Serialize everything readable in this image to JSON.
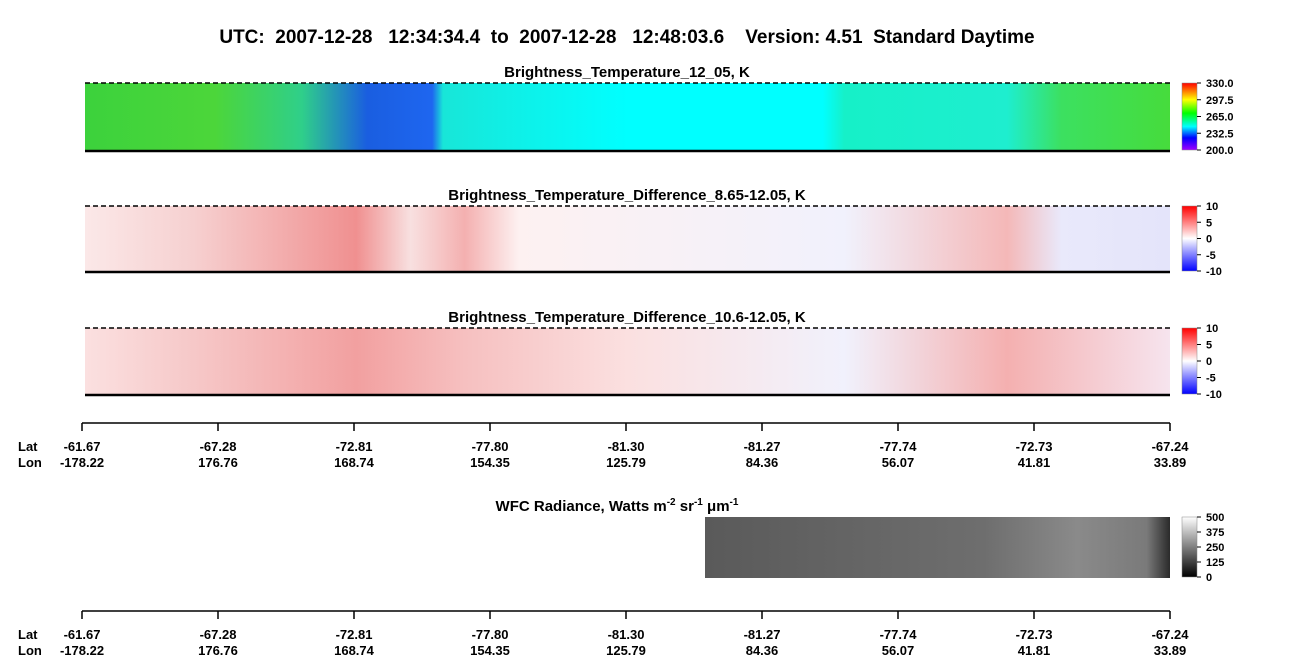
{
  "header": {
    "title": "UTC:  2007-12-28   12:34:34.4  to  2007-12-28   12:48:03.6    Version: 4.51  Standard Daytime"
  },
  "panels": [
    {
      "title": "Brightness_Temperature_12_05, K",
      "colorbar": [
        "330.0",
        "297.5",
        "265.0",
        "232.5",
        "200.0"
      ]
    },
    {
      "title": "Brightness_Temperature_Difference_8.65-12.05, K",
      "colorbar": [
        "10",
        "5",
        "0",
        "-5",
        "-10"
      ]
    },
    {
      "title": "Brightness_Temperature_Difference_10.6-12.05, K",
      "colorbar": [
        "10",
        "5",
        "0",
        "-5",
        "-10"
      ]
    }
  ],
  "axes": [
    {
      "row_labels": [
        "Lat",
        "Lon"
      ],
      "lat": [
        "-61.67",
        "-67.28",
        "-72.81",
        "-77.80",
        "-81.30",
        "-81.27",
        "-77.74",
        "-72.73",
        "-67.24"
      ],
      "lon": [
        "-178.22",
        "176.76",
        "168.74",
        "154.35",
        "125.79",
        "84.36",
        "56.07",
        "41.81",
        "33.89"
      ]
    },
    {
      "row_labels": [
        "Lat",
        "Lon"
      ],
      "lat": [
        "-61.67",
        "-67.28",
        "-72.81",
        "-77.80",
        "-81.30",
        "-81.27",
        "-77.74",
        "-72.73",
        "-67.24"
      ],
      "lon": [
        "-178.22",
        "176.76",
        "168.74",
        "154.35",
        "125.79",
        "84.36",
        "56.07",
        "41.81",
        "33.89"
      ]
    }
  ],
  "wfc": {
    "title_parts": [
      "WFC Radiance, Watts m",
      "-2",
      " sr",
      "-1",
      " μm",
      "-1"
    ],
    "colorbar": [
      "500",
      "375",
      "250",
      "125",
      "0"
    ]
  }
}
